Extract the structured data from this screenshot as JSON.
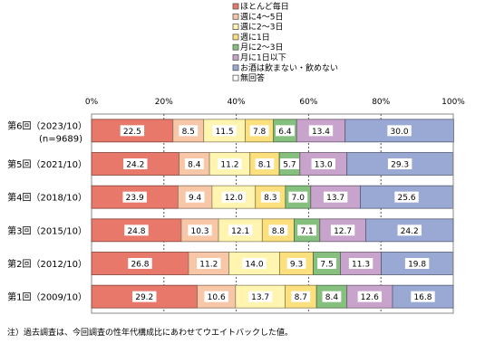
{
  "chart_data": {
    "type": "bar",
    "orientation": "horizontal",
    "stacked": true,
    "percent_stacked": true,
    "xlim": [
      0,
      100
    ],
    "xticks": [
      "0%",
      "20%",
      "40%",
      "60%",
      "80%",
      "100%"
    ],
    "grid": true,
    "legend_placement": "top",
    "categories": [
      [
        "第6回（2023/10）",
        "(n=9689)"
      ],
      [
        "第5回（2021/10）"
      ],
      [
        "第4回（2018/10）"
      ],
      [
        "第3回（2015/10）"
      ],
      [
        "第2回（2012/10）"
      ],
      [
        "第1回（2009/10）"
      ]
    ],
    "series": [
      {
        "name": "ほとんど毎日",
        "color": "#e8786a",
        "values": [
          22.5,
          24.2,
          23.9,
          24.8,
          26.8,
          29.2
        ],
        "labels": [
          "22.5",
          "24.2",
          "23.9",
          "24.8",
          "26.8",
          "29.2"
        ]
      },
      {
        "name": "週に4～5日",
        "color": "#f8c7a8",
        "values": [
          8.5,
          8.4,
          9.4,
          10.3,
          11.2,
          10.6
        ],
        "labels": [
          "8.5",
          "8.4",
          "9.4",
          "10.3",
          "11.2",
          "10.6"
        ]
      },
      {
        "name": "週に2～3日",
        "color": "#fff4b0",
        "values": [
          11.5,
          11.2,
          12.0,
          12.1,
          14.0,
          13.7
        ],
        "labels": [
          "11.5",
          "11.2",
          "12.0",
          "12.1",
          "14.0",
          "13.7"
        ]
      },
      {
        "name": "週に1日",
        "color": "#fde07e",
        "values": [
          7.8,
          8.1,
          8.3,
          8.8,
          9.3,
          8.7
        ],
        "labels": [
          "7.8",
          "8.1",
          "8.3",
          "8.8",
          "9.3",
          "8.7"
        ]
      },
      {
        "name": "月に2～3日",
        "color": "#86c07e",
        "values": [
          6.4,
          5.7,
          7.0,
          7.1,
          7.5,
          8.4
        ],
        "labels": [
          "6.4",
          "5.7",
          "7.0",
          "7.1",
          "7.5",
          "8.4"
        ]
      },
      {
        "name": "月に1日以下",
        "color": "#c8a3cc",
        "values": [
          13.4,
          13.0,
          13.7,
          12.7,
          11.3,
          12.6
        ],
        "labels": [
          "13.4",
          "13.0",
          "13.7",
          "12.7",
          "11.3",
          "12.6"
        ]
      },
      {
        "name": "お酒は飲まない・飲めない",
        "color": "#9aa8d4",
        "values": [
          30.0,
          29.3,
          25.6,
          24.2,
          19.8,
          16.8
        ],
        "labels": [
          "30.0",
          "29.3",
          "25.6",
          "24.2",
          "19.8",
          "16.8"
        ]
      },
      {
        "name": "無回答",
        "color": "#ffffff",
        "values": [
          0.0,
          0.1,
          0.1,
          0.0,
          0.1,
          0.0
        ],
        "labels": [
          "",
          "",
          "",
          "",
          "",
          ""
        ]
      }
    ]
  },
  "note": "注）過去調査は、今回調査の性年代構成比にあわせてウエイトバックした値。"
}
